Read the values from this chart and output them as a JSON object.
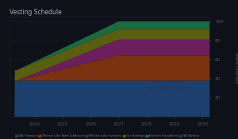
{
  "title": "Vesting Schedule",
  "bg_color": "#0e1117",
  "plot_bg_color": "#0e1117",
  "x_ticks": [
    2024,
    2025,
    2026,
    2027,
    2028,
    2029,
    2030
  ],
  "y_ticks": [
    20,
    40,
    60,
    80,
    100
  ],
  "x_min": 2023.1,
  "x_max": 2030.25,
  "y_min": 0,
  "y_max": 105,
  "vesting_start": 2023.28,
  "vesting_step": 2023.37,
  "vesting_end": 2027.0,
  "layers": [
    {
      "label": "DAO Treasury",
      "color": "#1c3f6e",
      "initial": 38.0,
      "final": 38.0
    },
    {
      "label": "Offchain Labs Team & Advisors",
      "color": "#7a3210",
      "initial": 0.0,
      "final": 26.5
    },
    {
      "label": "Offchain Labs Investors",
      "color": "#6b1f5c",
      "initial": 0.0,
      "final": 16.5
    },
    {
      "label": "User Airdrops",
      "color": "#5a5e10",
      "initial": 11.0,
      "final": 11.0
    },
    {
      "label": "Arbitrum Foundation",
      "color": "#1a6b40",
      "initial": 0.0,
      "final": 8.0
    },
    {
      "label": "DAO Airdrop",
      "color": "#1a3a6b",
      "initial": 0.0,
      "final": 0.0
    }
  ],
  "messari_text": "Messari",
  "messari_color": "#253a5e",
  "legend_colors": [
    "#1c3f6e",
    "#7a3210",
    "#6b1f5c",
    "#5a5e10",
    "#1a6b40",
    "#1a3a6b"
  ],
  "legend_labels": [
    "DAO Treasury",
    "Offchain Labs Team & Advisors",
    "Offchain Labs Investors",
    "User Airdrops",
    "Arbitrum Foundation",
    "DAO Airdrop"
  ]
}
